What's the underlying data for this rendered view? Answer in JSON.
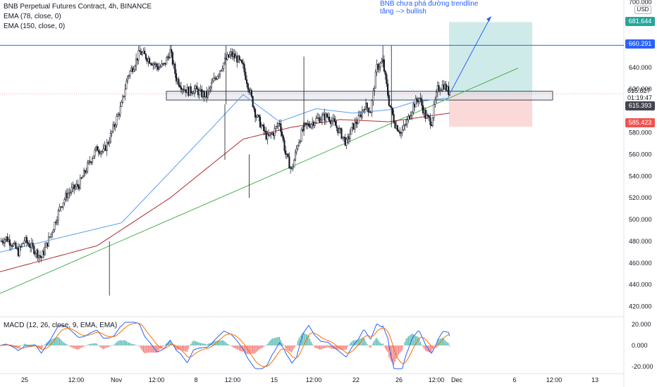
{
  "header": {
    "title": "BNB Perpetual Futures Contract, 4h, BINANCE",
    "indicators": [
      "EMA (78, close, 0)",
      "EMA (150, close, 0)"
    ]
  },
  "annotation": {
    "line1": "BNB chưa phá đường trendline",
    "line2": "tăng --> bullish"
  },
  "price_axis": {
    "currency": "USD",
    "ticks": [
      "700.000",
      "640.000",
      "620.000",
      "580.000",
      "560.000",
      "540.000",
      "520.000",
      "500.000",
      "480.000",
      "460.000",
      "440.000",
      "420.000"
    ]
  },
  "price_tags": {
    "target": "681.644",
    "resistance": "660.291",
    "last": "615.827",
    "countdown": "01:19:47",
    "ema": "615.393",
    "stop": "585.423"
  },
  "macd": {
    "label": "MACD (12, 26, close, 9, EMA, EMA)",
    "ticks": [
      "20.000",
      "0.000",
      "-20.000"
    ]
  },
  "time_axis": [
    "25",
    "12:00",
    "Nov",
    "12:00",
    "8",
    "12:00",
    "15",
    "12:00",
    "22",
    "26",
    "12:00",
    "Dec",
    "6",
    "12:00",
    "13"
  ],
  "colors": {
    "up": "#26a69a",
    "down": "#ef5350",
    "candle": "#131722",
    "ema78": "#5b9cf6",
    "ema150": "#b2282e",
    "trendline": "#4caf50",
    "resistance": "#2962ff",
    "macd": "#2962ff",
    "signal": "#ff6d00"
  },
  "chart_data": {
    "type": "candlestick",
    "symbol": "BNB Perpetual Futures Contract",
    "interval": "4h",
    "exchange": "BINANCE",
    "ylim": [
      412,
      702
    ],
    "x_labels": [
      "25",
      "12:00",
      "Nov",
      "12:00",
      "8",
      "12:00",
      "15",
      "12:00",
      "22",
      "26",
      "12:00",
      "Dec",
      "6",
      "12:00",
      "13"
    ],
    "close_path": [
      [
        0,
        480
      ],
      [
        5,
        483
      ],
      [
        10,
        478
      ],
      [
        15,
        470
      ],
      [
        20,
        481
      ],
      [
        25,
        476
      ],
      [
        30,
        470
      ],
      [
        34,
        465
      ],
      [
        38,
        476
      ],
      [
        42,
        487
      ],
      [
        46,
        500
      ],
      [
        50,
        513
      ],
      [
        55,
        523
      ],
      [
        60,
        528
      ],
      [
        65,
        532
      ],
      [
        70,
        544
      ],
      [
        75,
        556
      ],
      [
        80,
        566
      ],
      [
        85,
        562
      ],
      [
        90,
        574
      ],
      [
        95,
        590
      ],
      [
        100,
        605
      ],
      [
        105,
        632
      ],
      [
        110,
        642
      ],
      [
        115,
        654
      ],
      [
        120,
        650
      ],
      [
        125,
        645
      ],
      [
        130,
        640
      ],
      [
        135,
        642
      ],
      [
        140,
        655
      ],
      [
        145,
        630
      ],
      [
        150,
        622
      ],
      [
        155,
        618
      ],
      [
        160,
        620
      ],
      [
        165,
        616
      ],
      [
        170,
        614
      ],
      [
        175,
        626
      ],
      [
        180,
        636
      ],
      [
        185,
        646
      ],
      [
        190,
        652
      ],
      [
        195,
        648
      ],
      [
        200,
        640
      ],
      [
        205,
        620
      ],
      [
        210,
        598
      ],
      [
        215,
        586
      ],
      [
        220,
        575
      ],
      [
        225,
        580
      ],
      [
        230,
        590
      ],
      [
        235,
        560
      ],
      [
        240,
        545
      ],
      [
        245,
        570
      ],
      [
        250,
        585
      ],
      [
        255,
        588
      ],
      [
        260,
        592
      ],
      [
        265,
        594
      ],
      [
        270,
        595
      ],
      [
        275,
        588
      ],
      [
        280,
        580
      ],
      [
        285,
        570
      ],
      [
        290,
        585
      ],
      [
        295,
        592
      ],
      [
        300,
        605
      ],
      [
        305,
        600
      ],
      [
        310,
        640
      ],
      [
        315,
        645
      ],
      [
        320,
        608
      ],
      [
        325,
        588
      ],
      [
        330,
        580
      ],
      [
        335,
        590
      ],
      [
        340,
        605
      ],
      [
        345,
        612
      ],
      [
        350,
        595
      ],
      [
        355,
        590
      ],
      [
        360,
        620
      ],
      [
        365,
        624
      ],
      [
        370,
        616
      ]
    ],
    "ema78_path": [
      [
        0,
        470
      ],
      [
        100,
        497
      ],
      [
        175,
        585
      ],
      [
        200,
        615
      ],
      [
        230,
        590
      ],
      [
        260,
        602
      ],
      [
        290,
        598
      ],
      [
        320,
        601
      ],
      [
        340,
        608
      ],
      [
        370,
        612
      ]
    ],
    "ema150_path": [
      [
        0,
        452
      ],
      [
        80,
        476
      ],
      [
        140,
        520
      ],
      [
        200,
        574
      ],
      [
        240,
        585
      ],
      [
        280,
        592
      ],
      [
        320,
        590
      ],
      [
        370,
        598
      ]
    ],
    "trendline": [
      [
        0,
        432
      ],
      [
        370,
        612
      ]
    ],
    "resistance_level": 660.291,
    "support_zone": [
      610,
      618
    ],
    "trade_target": 681.644,
    "trade_entry": 615.827,
    "trade_stop": 585.423,
    "macd": {
      "ylim": [
        -26,
        26
      ],
      "ticks": [
        20,
        0,
        -20
      ]
    }
  }
}
